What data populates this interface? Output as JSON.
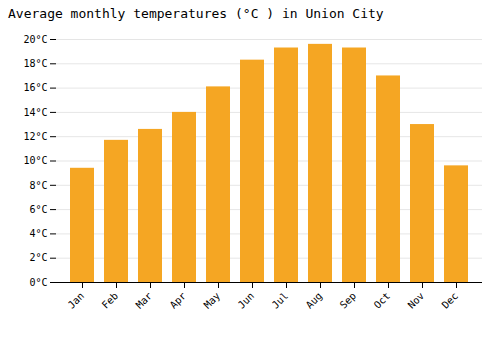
{
  "chart_data": {
    "type": "bar",
    "title": "Average monthly temperatures (°C ) in Union City",
    "categories": [
      "Jan",
      "Feb",
      "Mar",
      "Apr",
      "May",
      "Jun",
      "Jul",
      "Aug",
      "Sep",
      "Oct",
      "Nov",
      "Dec"
    ],
    "values": [
      9.4,
      11.7,
      12.6,
      14.0,
      16.1,
      18.3,
      19.3,
      19.6,
      19.3,
      17.0,
      13.0,
      9.6
    ],
    "color": "#F5A623",
    "ylim": [
      0,
      20
    ],
    "yticks": [
      {
        "value": 0,
        "label": "0°C"
      },
      {
        "value": 2,
        "label": "2°C"
      },
      {
        "value": 4,
        "label": "4°C"
      },
      {
        "value": 6,
        "label": "6°C"
      },
      {
        "value": 8,
        "label": "8°C"
      },
      {
        "value": 10,
        "label": "10°C"
      },
      {
        "value": 12,
        "label": "12°C"
      },
      {
        "value": 14,
        "label": "14°C"
      },
      {
        "value": 16,
        "label": "16°C"
      },
      {
        "value": 18,
        "label": "18°C"
      },
      {
        "value": 20,
        "label": "20°C"
      }
    ],
    "grid": true
  }
}
